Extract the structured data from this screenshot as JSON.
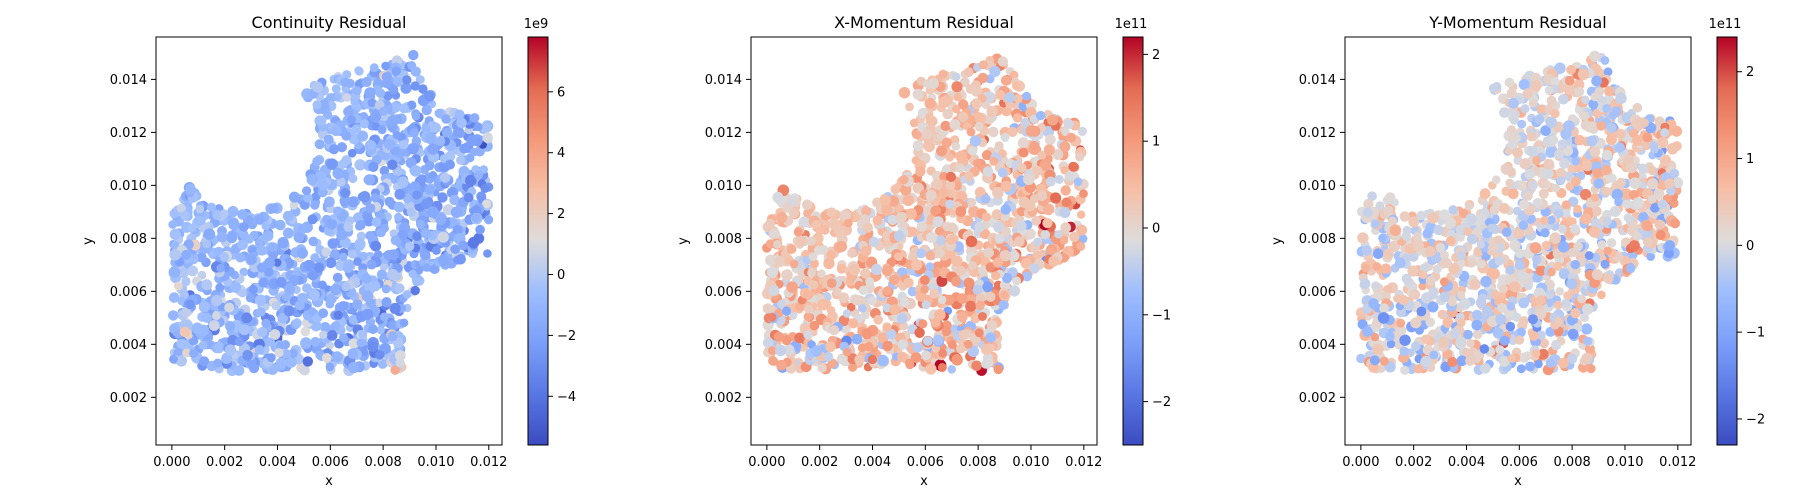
{
  "chart_data": [
    {
      "type": "scatter",
      "title": "Continuity Residual",
      "xlabel": "x",
      "ylabel": "y",
      "xlim": [
        -0.0006,
        0.0125
      ],
      "ylim": [
        0.0002,
        0.0156
      ],
      "x_ticks": [
        "0.000",
        "0.002",
        "0.004",
        "0.006",
        "0.008",
        "0.010",
        "0.012"
      ],
      "y_ticks": [
        "0.002",
        "0.004",
        "0.006",
        "0.008",
        "0.010",
        "0.012",
        "0.014"
      ],
      "colormap": "coolwarm",
      "colorbar": {
        "vmin": -5.6,
        "vmax": 7.8,
        "scale_label": "1e9",
        "ticks": [
          "−4",
          "−2",
          "0",
          "2",
          "4",
          "6"
        ],
        "tick_values": [
          -4,
          -2,
          0,
          2,
          4,
          6
        ]
      },
      "trend": {
        "base": -0.9,
        "gradient": -1.2,
        "noise": 1.4,
        "hot_spot": [
          0.0088,
          0.0031,
          5.5
        ]
      }
    },
    {
      "type": "scatter",
      "title": "X-Momentum Residual",
      "xlabel": "x",
      "ylabel": "y",
      "xlim": [
        -0.0006,
        0.0125
      ],
      "ylim": [
        0.0002,
        0.0156
      ],
      "x_ticks": [
        "0.000",
        "0.002",
        "0.004",
        "0.006",
        "0.008",
        "0.010",
        "0.012"
      ],
      "y_ticks": [
        "0.002",
        "0.004",
        "0.006",
        "0.008",
        "0.010",
        "0.012",
        "0.014"
      ],
      "colormap": "coolwarm",
      "colorbar": {
        "vmin": -2.5,
        "vmax": 2.2,
        "scale_label": "1e11",
        "ticks": [
          "−2",
          "−1",
          "0",
          "1",
          "2"
        ],
        "tick_values": [
          -2,
          -1,
          0,
          1,
          2
        ]
      },
      "trend": {
        "base": 0.25,
        "gradient": 0.2,
        "noise": 0.75,
        "hot_spot": [
          0.0108,
          0.0085,
          1.2
        ]
      }
    },
    {
      "type": "scatter",
      "title": "Y-Momentum Residual",
      "xlabel": "x",
      "ylabel": "y",
      "xlim": [
        -0.0006,
        0.0125
      ],
      "ylim": [
        0.0002,
        0.0156
      ],
      "x_ticks": [
        "0.000",
        "0.002",
        "0.004",
        "0.006",
        "0.008",
        "0.010",
        "0.012"
      ],
      "y_ticks": [
        "0.002",
        "0.004",
        "0.006",
        "0.008",
        "0.010",
        "0.012",
        "0.014"
      ],
      "colormap": "coolwarm",
      "colorbar": {
        "vmin": -2.3,
        "vmax": 2.4,
        "scale_label": "1e11",
        "ticks": [
          "−2",
          "−1",
          "0",
          "1",
          "2"
        ],
        "tick_values": [
          -2,
          -1,
          0,
          1,
          2
        ]
      },
      "trend": {
        "base": 0.1,
        "gradient": 0.15,
        "noise": 0.75,
        "hot_spot": [
          0.0025,
          0.0022,
          -1.4
        ]
      }
    }
  ]
}
